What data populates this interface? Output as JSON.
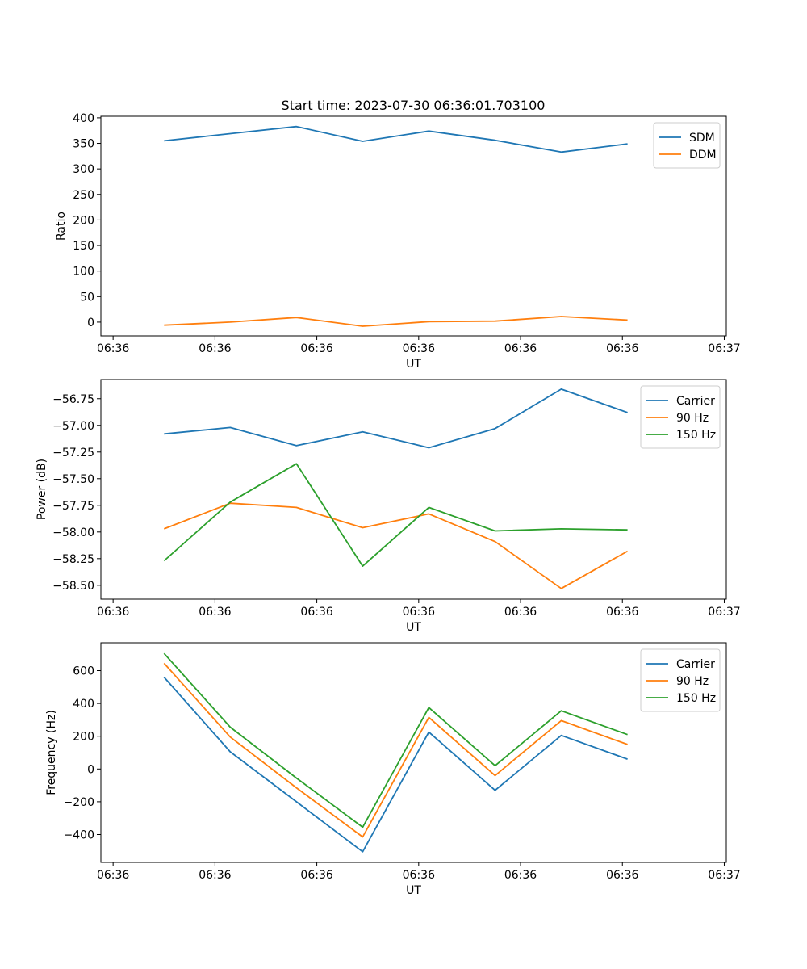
{
  "figure_title": "Start time: 2023-07-30 06:36:01.703100",
  "colors": {
    "blue": "#1f77b4",
    "orange": "#ff7f0e",
    "green": "#2ca02c"
  },
  "chart_data": [
    {
      "type": "line",
      "title": "Start time: 2023-07-30 06:36:01.703100",
      "xlabel": "UT",
      "ylabel": "Ratio",
      "x": [
        0.5,
        1.15,
        1.8,
        2.45,
        3.1,
        3.75,
        4.4,
        5.05
      ],
      "xlim": [
        -0.12,
        6.02
      ],
      "xticks": [
        0,
        1,
        2,
        3,
        4,
        5,
        6
      ],
      "xtick_labels": [
        "06:36",
        "06:36",
        "06:36",
        "06:36",
        "06:36",
        "06:36",
        "06:37"
      ],
      "ylim": [
        -27,
        403
      ],
      "yticks": [
        0,
        50,
        100,
        150,
        200,
        250,
        300,
        350,
        400
      ],
      "ytick_labels": [
        "0",
        "50",
        "100",
        "150",
        "200",
        "250",
        "300",
        "350",
        "400"
      ],
      "legend_position": "top-right",
      "series": [
        {
          "name": "SDM",
          "color": "#1f77b4",
          "values": [
            355,
            369,
            383,
            354,
            374,
            356,
            333,
            349
          ]
        },
        {
          "name": "DDM",
          "color": "#ff7f0e",
          "values": [
            -6,
            0,
            9,
            -8,
            1,
            2,
            11,
            4
          ]
        }
      ]
    },
    {
      "type": "line",
      "title": "",
      "xlabel": "UT",
      "ylabel": "Power (dB)",
      "x": [
        0.5,
        1.15,
        1.8,
        2.45,
        3.1,
        3.75,
        4.4,
        5.05
      ],
      "xlim": [
        -0.12,
        6.02
      ],
      "xticks": [
        0,
        1,
        2,
        3,
        4,
        5,
        6
      ],
      "xtick_labels": [
        "06:36",
        "06:36",
        "06:36",
        "06:36",
        "06:36",
        "06:36",
        "06:37"
      ],
      "ylim": [
        -58.63,
        -56.57
      ],
      "yticks": [
        -58.5,
        -58.25,
        -58.0,
        -57.75,
        -57.5,
        -57.25,
        -57.0,
        -56.75
      ],
      "ytick_labels": [
        "−58.50",
        "−58.25",
        "−58.00",
        "−57.75",
        "−57.50",
        "−57.25",
        "−57.00",
        "−56.75"
      ],
      "legend_position": "top-right",
      "series": [
        {
          "name": "Carrier",
          "color": "#1f77b4",
          "values": [
            -57.08,
            -57.02,
            -57.19,
            -57.06,
            -57.21,
            -57.03,
            -56.66,
            -56.88
          ]
        },
        {
          "name": "90 Hz",
          "color": "#ff7f0e",
          "values": [
            -57.97,
            -57.73,
            -57.77,
            -57.96,
            -57.83,
            -58.09,
            -58.53,
            -58.18
          ]
        },
        {
          "name": "150 Hz",
          "color": "#2ca02c",
          "values": [
            -58.27,
            -57.72,
            -57.36,
            -58.32,
            -57.77,
            -57.99,
            -57.97,
            -57.98
          ]
        }
      ]
    },
    {
      "type": "line",
      "title": "",
      "xlabel": "UT",
      "ylabel": "Frequency (Hz)",
      "x": [
        0.5,
        1.15,
        1.8,
        2.45,
        3.1,
        3.75,
        4.4,
        5.05
      ],
      "xlim": [
        -0.12,
        6.02
      ],
      "xticks": [
        0,
        1,
        2,
        3,
        4,
        5,
        6
      ],
      "xtick_labels": [
        "06:36",
        "06:36",
        "06:36",
        "06:36",
        "06:36",
        "06:36",
        "06:37"
      ],
      "ylim": [
        -570,
        770
      ],
      "yticks": [
        -400,
        -200,
        0,
        200,
        400,
        600
      ],
      "ytick_labels": [
        "−400",
        "−200",
        "0",
        "200",
        "400",
        "600"
      ],
      "legend_position": "top-right",
      "series": [
        {
          "name": "Carrier",
          "color": "#1f77b4",
          "values": [
            560,
            105,
            -200,
            -505,
            225,
            -130,
            205,
            60
          ]
        },
        {
          "name": "90 Hz",
          "color": "#ff7f0e",
          "values": [
            645,
            195,
            -115,
            -415,
            315,
            -40,
            295,
            150
          ]
        },
        {
          "name": "150 Hz",
          "color": "#2ca02c",
          "values": [
            705,
            255,
            -55,
            -355,
            375,
            20,
            355,
            210
          ]
        }
      ]
    }
  ]
}
